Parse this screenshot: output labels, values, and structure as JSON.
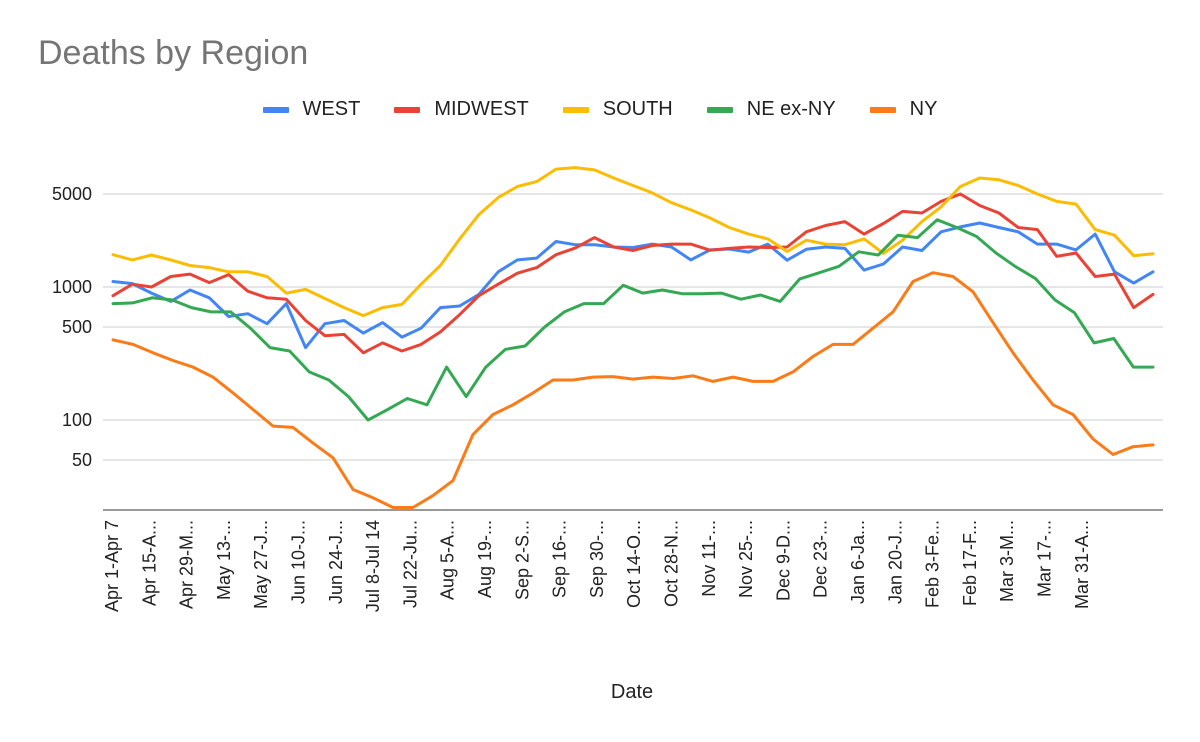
{
  "chart_data": {
    "type": "line",
    "title": "Deaths by Region",
    "xlabel": "Date",
    "ylabel": "",
    "yscale": "log",
    "y_ticks": [
      50,
      100,
      500,
      1000,
      5000
    ],
    "grid": true,
    "legend_position": "top",
    "x_tick_labels": [
      "Apr 1-Apr 7",
      "Apr 15-A...",
      "Apr 29-M...",
      "May 13-...",
      "May 27-J...",
      "Jun 10-J...",
      "Jun 24-J...",
      "Jul 8-Jul 14",
      "Jul 22-Ju...",
      "Aug 5-A...",
      "Aug 19-...",
      "Sep 2-S...",
      "Sep 16-...",
      "Sep 30-...",
      "Oct 14-O...",
      "Oct 28-N...",
      "Nov 11-...",
      "Nov 25-...",
      "Dec 9-D...",
      "Dec 23-...",
      "Jan 6-Ja...",
      "Jan 20-J...",
      "Feb 3-Fe...",
      "Feb 17-F...",
      "Mar 3-M...",
      "Mar 17-...",
      "Mar 31-A..."
    ],
    "series": [
      {
        "name": "WEST",
        "color": "#4285f4",
        "values": [
          1100,
          1060,
          900,
          780,
          950,
          830,
          600,
          630,
          530,
          750,
          350,
          530,
          560,
          450,
          540,
          420,
          490,
          700,
          720,
          880,
          1300,
          1600,
          1650,
          2200,
          2080,
          2080,
          2000,
          1980,
          2100,
          2000,
          1600,
          1900,
          1930,
          1830,
          2100,
          1590,
          1920,
          2000,
          1950,
          1340,
          1490,
          2000,
          1880,
          2600,
          2830,
          3030,
          2800,
          2600,
          2100,
          2100,
          1900,
          2500,
          1300,
          1070,
          1300
        ]
      },
      {
        "name": "MIDWEST",
        "color": "#ea4335",
        "values": [
          860,
          1050,
          1000,
          1200,
          1250,
          1080,
          1240,
          930,
          830,
          810,
          560,
          430,
          440,
          320,
          380,
          330,
          370,
          460,
          620,
          860,
          1050,
          1270,
          1400,
          1750,
          1960,
          2350,
          2000,
          1880,
          2050,
          2100,
          2100,
          1890,
          1950,
          2000,
          1980,
          2000,
          2600,
          2900,
          3100,
          2500,
          3000,
          3700,
          3600,
          4400,
          5000,
          4100,
          3600,
          2800,
          2700,
          1700,
          1800,
          1200,
          1250,
          700,
          880
        ]
      },
      {
        "name": "SOUTH",
        "color": "#fbbc04",
        "values": [
          1750,
          1600,
          1740,
          1600,
          1450,
          1400,
          1300,
          1300,
          1200,
          900,
          960,
          820,
          700,
          610,
          700,
          740,
          1050,
          1450,
          2300,
          3500,
          4700,
          5700,
          6200,
          7700,
          7900,
          7600,
          6600,
          5800,
          5100,
          4300,
          3800,
          3300,
          2800,
          2500,
          2300,
          1850,
          2250,
          2100,
          2080,
          2300,
          1790,
          2250,
          3100,
          4000,
          5700,
          6600,
          6400,
          5800,
          5000,
          4400,
          4200,
          2700,
          2450,
          1720,
          1780
        ]
      },
      {
        "name": "NE ex-NY",
        "color": "#34a853",
        "values": [
          750,
          760,
          830,
          800,
          700,
          650,
          650,
          490,
          350,
          330,
          230,
          200,
          150,
          100,
          120,
          145,
          130,
          250,
          150,
          250,
          340,
          360,
          500,
          650,
          750,
          750,
          1030,
          900,
          950,
          890,
          890,
          900,
          810,
          870,
          780,
          1150,
          1280,
          1430,
          1840,
          1740,
          2450,
          2350,
          3200,
          2800,
          2400,
          1800,
          1420,
          1160,
          800,
          640,
          380,
          410,
          250,
          250
        ]
      },
      {
        "name": "NY",
        "color": "#fa7b17",
        "values": [
          400,
          370,
          320,
          280,
          250,
          210,
          160,
          120,
          90,
          88,
          67,
          52,
          30,
          26,
          22,
          22,
          27,
          35,
          78,
          110,
          130,
          160,
          200,
          200,
          210,
          212,
          203,
          210,
          205,
          215,
          195,
          210,
          195,
          195,
          230,
          300,
          370,
          370,
          490,
          650,
          1100,
          1280,
          1200,
          920,
          540,
          320,
          200,
          130,
          110,
          72,
          55,
          63,
          65
        ]
      }
    ]
  }
}
